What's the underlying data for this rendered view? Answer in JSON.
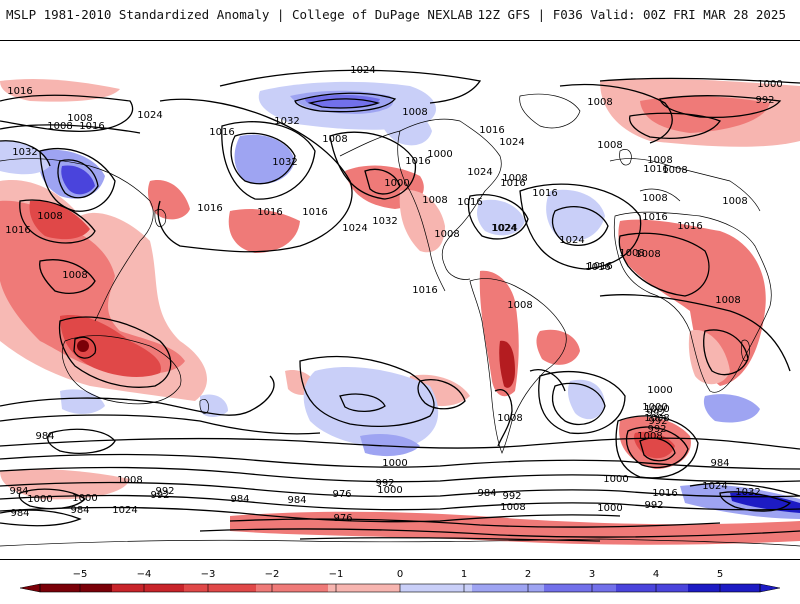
{
  "header": {
    "title_left": "MSLP 1981-2010 Standardized Anomaly | College of DuPage NEXLAB",
    "title_right": "12Z GFS | F036 Valid: 00Z FRI MAR 28 2025"
  },
  "map": {
    "isobar_labels": [
      "1024",
      "1016",
      "1008",
      "1016",
      "1008",
      "1032",
      "1016",
      "1032",
      "1032",
      "1024",
      "1008",
      "1024",
      "1016",
      "1016",
      "1016",
      "1008",
      "1016",
      "1008",
      "1032",
      "1000",
      "1016",
      "1024",
      "1008",
      "1016",
      "1000",
      "1008",
      "1008",
      "1024",
      "1016",
      "1008",
      "1016",
      "1008",
      "1008",
      "1024",
      "1008",
      "1008",
      "1016",
      "1024",
      "1008",
      "1016",
      "1016",
      "1008",
      "1008",
      "1016",
      "1008",
      "1000",
      "992",
      "1016",
      "1016",
      "1024",
      "1008",
      "1008",
      "1016",
      "1000",
      "992",
      "1000",
      "992",
      "984",
      "984",
      "1000",
      "1008",
      "992",
      "976",
      "984",
      "992",
      "1000",
      "984",
      "984",
      "984",
      "1000",
      "976",
      "992",
      "1000",
      "1024",
      "1008",
      "1000",
      "984",
      "992",
      "1008",
      "1016",
      "1024",
      "1032",
      "984",
      "992",
      "1008",
      "1000",
      "1008",
      "992",
      "1000"
    ]
  },
  "colorbar": {
    "ticks": [
      "−5",
      "−4",
      "−3",
      "−2",
      "−1",
      "0",
      "1",
      "2",
      "3",
      "4",
      "5"
    ],
    "colors": [
      "#7a0008",
      "#c8242a",
      "#e04848",
      "#ef7a78",
      "#f7b5b0",
      "#ffffff",
      "#c9cff8",
      "#9ea4f2",
      "#7270ea",
      "#4a44dc",
      "#1d1bc4"
    ]
  }
}
